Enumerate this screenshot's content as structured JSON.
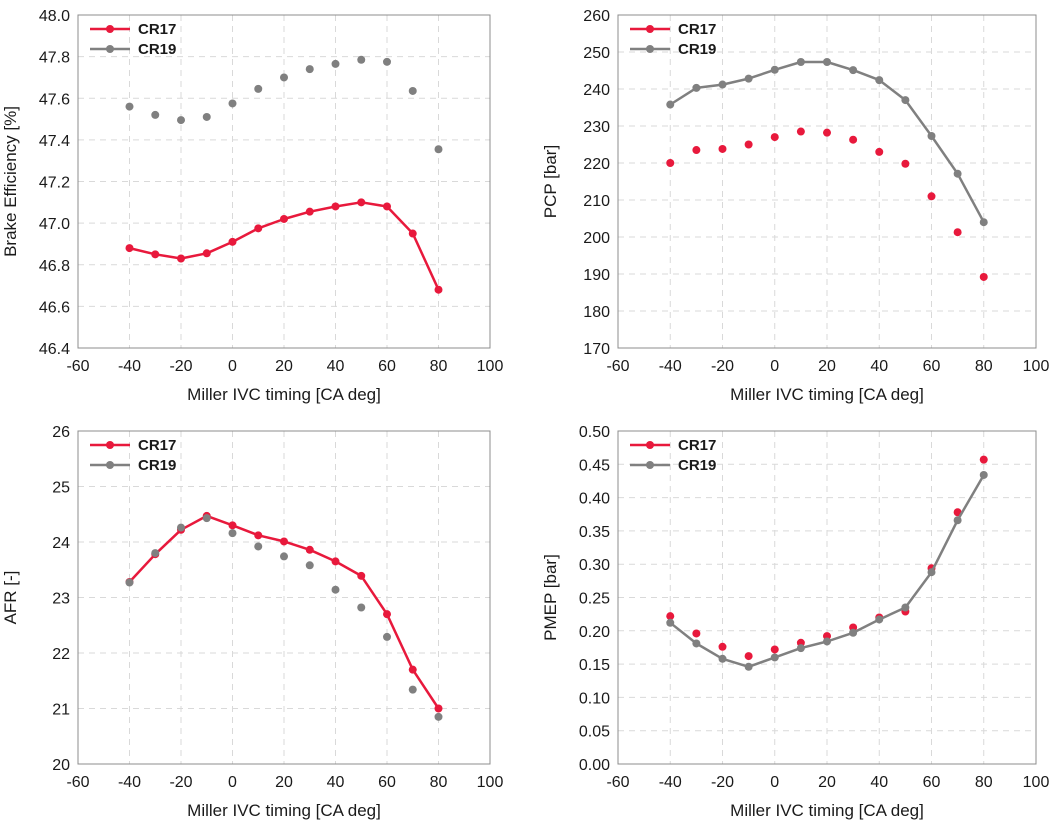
{
  "chart_data": [
    {
      "type": "line",
      "xlabel": "Miller IVC timing [CA deg]",
      "ylabel": "Brake Efficiency [%]",
      "xlim": [
        -60,
        100
      ],
      "ylim": [
        46.4,
        48.0
      ],
      "x_ticks": [
        "-60",
        "-40",
        "-20",
        "0",
        "20",
        "40",
        "60",
        "80",
        "100"
      ],
      "y_ticks": [
        "46.4",
        "46.6",
        "46.8",
        "47.0",
        "47.2",
        "47.4",
        "47.6",
        "47.8",
        "48.0"
      ],
      "legend_position": "top-left",
      "series": [
        {
          "name": "CR17",
          "color": "#e8193c",
          "line": true,
          "x": [
            -40,
            -30,
            -20,
            -10,
            0,
            10,
            20,
            30,
            40,
            50,
            60,
            70,
            80
          ],
          "y": [
            46.88,
            46.85,
            46.83,
            46.855,
            46.91,
            46.975,
            47.02,
            47.055,
            47.08,
            47.1,
            47.08,
            46.95,
            46.68
          ]
        },
        {
          "name": "CR19",
          "color": "#808080",
          "line": false,
          "x": [
            -40,
            -30,
            -20,
            -10,
            0,
            10,
            20,
            30,
            40,
            50,
            60,
            70,
            80
          ],
          "y": [
            47.56,
            47.52,
            47.495,
            47.51,
            47.575,
            47.645,
            47.7,
            47.74,
            47.765,
            47.785,
            47.775,
            47.635,
            47.355
          ]
        }
      ]
    },
    {
      "type": "line",
      "xlabel": "Miller IVC timing [CA deg]",
      "ylabel": "PCP [bar]",
      "xlim": [
        -60,
        100
      ],
      "ylim": [
        170,
        260
      ],
      "x_ticks": [
        "-60",
        "-40",
        "-20",
        "0",
        "20",
        "40",
        "60",
        "80",
        "100"
      ],
      "y_ticks": [
        "170",
        "180",
        "190",
        "200",
        "210",
        "220",
        "230",
        "240",
        "250",
        "260"
      ],
      "legend_position": "top-left",
      "series": [
        {
          "name": "CR17",
          "color": "#e8193c",
          "line": false,
          "x": [
            -40,
            -30,
            -20,
            -10,
            0,
            10,
            20,
            30,
            40,
            50,
            60,
            70,
            80
          ],
          "y": [
            220,
            223.5,
            223.8,
            225,
            227,
            228.5,
            228.2,
            226.3,
            223,
            219.8,
            211,
            201.3,
            189.2
          ]
        },
        {
          "name": "CR19",
          "color": "#808080",
          "line": true,
          "x": [
            -40,
            -30,
            -20,
            -10,
            0,
            10,
            20,
            30,
            40,
            50,
            60,
            70,
            80
          ],
          "y": [
            235.8,
            240.3,
            241.2,
            242.8,
            245.2,
            247.3,
            247.3,
            245.1,
            242.4,
            237,
            227.3,
            217.1,
            204
          ]
        }
      ]
    },
    {
      "type": "line",
      "xlabel": "Miller IVC timing [CA deg]",
      "ylabel": "AFR [-]",
      "xlim": [
        -60,
        100
      ],
      "ylim": [
        20,
        26
      ],
      "x_ticks": [
        "-60",
        "-40",
        "-20",
        "0",
        "20",
        "40",
        "60",
        "80",
        "100"
      ],
      "y_ticks": [
        "20",
        "21",
        "22",
        "23",
        "24",
        "25",
        "26"
      ],
      "legend_position": "top-left",
      "series": [
        {
          "name": "CR17",
          "color": "#e8193c",
          "line": true,
          "x": [
            -40,
            -30,
            -20,
            -10,
            0,
            10,
            20,
            30,
            40,
            50,
            60,
            70,
            80
          ],
          "y": [
            23.28,
            23.78,
            24.22,
            24.47,
            24.3,
            24.12,
            24.01,
            23.86,
            23.65,
            23.39,
            22.7,
            21.7,
            21
          ]
        },
        {
          "name": "CR19",
          "color": "#808080",
          "line": false,
          "x": [
            -40,
            -30,
            -20,
            -10,
            0,
            10,
            20,
            30,
            40,
            50,
            60,
            70,
            80
          ],
          "y": [
            23.27,
            23.8,
            24.26,
            24.43,
            24.16,
            23.92,
            23.74,
            23.58,
            23.14,
            22.82,
            22.29,
            21.34,
            20.85
          ]
        }
      ]
    },
    {
      "type": "line",
      "xlabel": "Miller IVC timing [CA deg]",
      "ylabel": "PMEP [bar]",
      "xlim": [
        -60,
        100
      ],
      "ylim": [
        0,
        0.5
      ],
      "x_ticks": [
        "-60",
        "-40",
        "-20",
        "0",
        "20",
        "40",
        "60",
        "80",
        "100"
      ],
      "y_ticks": [
        "0.00",
        "0.05",
        "0.10",
        "0.15",
        "0.20",
        "0.25",
        "0.30",
        "0.35",
        "0.40",
        "0.45",
        "0.50"
      ],
      "legend_position": "top-left",
      "series": [
        {
          "name": "CR17",
          "color": "#e8193c",
          "line": false,
          "x": [
            -40,
            -30,
            -20,
            -10,
            0,
            10,
            20,
            30,
            40,
            50,
            60,
            70,
            80
          ],
          "y": [
            0.222,
            0.196,
            0.176,
            0.162,
            0.172,
            0.182,
            0.192,
            0.205,
            0.22,
            0.229,
            0.294,
            0.378,
            0.457
          ]
        },
        {
          "name": "CR19",
          "color": "#808080",
          "line": true,
          "x": [
            -40,
            -30,
            -20,
            -10,
            0,
            10,
            20,
            30,
            40,
            50,
            60,
            70,
            80
          ],
          "y": [
            0.212,
            0.181,
            0.158,
            0.146,
            0.16,
            0.174,
            0.184,
            0.197,
            0.217,
            0.235,
            0.288,
            0.366,
            0.434
          ]
        }
      ]
    }
  ]
}
